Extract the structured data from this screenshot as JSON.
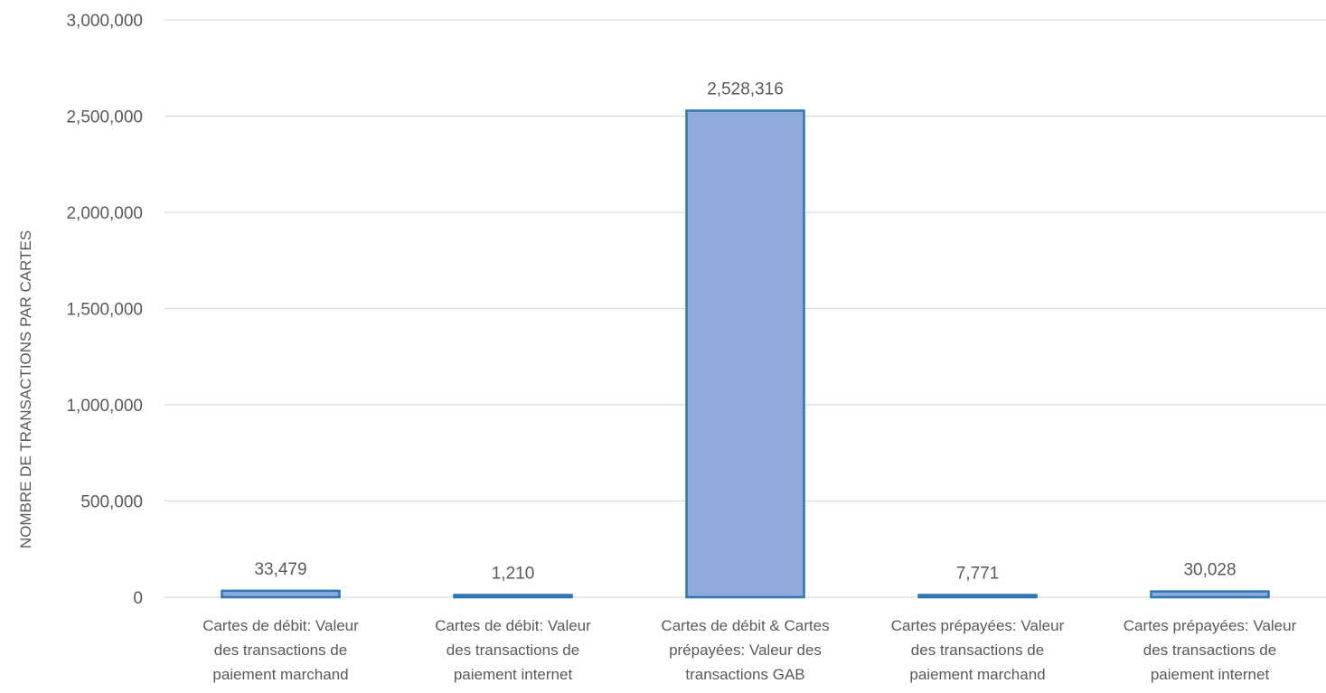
{
  "chart_data": {
    "type": "bar",
    "title": "",
    "xlabel": "",
    "ylabel": "NOMBRE DE TRANSACTIONS PAR CARTES",
    "ylim": [
      0,
      3000000
    ],
    "ytick_values": [
      0,
      500000,
      1000000,
      1500000,
      2000000,
      2500000,
      3000000
    ],
    "ytick_labels": [
      "0",
      "500,000",
      "1,000,000",
      "1,500,000",
      "2,000,000",
      "2,500,000",
      "3,000,000"
    ],
    "grid": true,
    "legend": "none",
    "categories": [
      [
        "Cartes de débit: Valeur",
        "des transactions de",
        "paiement marchand"
      ],
      [
        "Cartes de débit: Valeur",
        "des transactions de",
        "paiement internet"
      ],
      [
        "Cartes de débit & Cartes",
        "prépayées:  Valeur des",
        "transactions GAB"
      ],
      [
        "Cartes prépayées: Valeur",
        "des transactions de",
        "paiement marchand"
      ],
      [
        "Cartes prépayées: Valeur",
        "des transactions de",
        "paiement internet"
      ]
    ],
    "values": [
      33479,
      1210,
      2528316,
      7771,
      30028
    ],
    "data_labels": [
      "33,479",
      "1,210",
      "2,528,316",
      "7,771",
      "30,028"
    ],
    "colors": {
      "bar_fill": "#8eaadb",
      "bar_stroke": "#2e75b6",
      "grid": "#d9d9d9",
      "text": "#595959"
    }
  }
}
